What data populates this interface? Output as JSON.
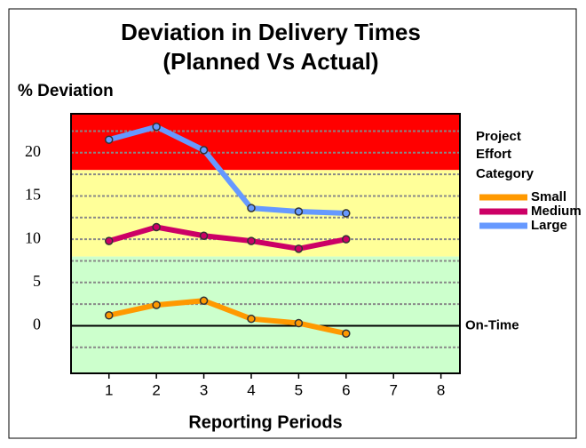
{
  "chart_data": {
    "type": "line",
    "title": [
      "Deviation in Delivery Times",
      "(Planned Vs Actual)"
    ],
    "y_label": "% Deviation",
    "x_label": "Reporting Periods",
    "legend_title": [
      "Project",
      "Effort",
      "Category"
    ],
    "x": [
      1,
      2,
      3,
      4,
      5,
      6
    ],
    "xlim": [
      0.2,
      8.4
    ],
    "xticks": [
      1,
      2,
      3,
      4,
      5,
      6,
      7,
      8
    ],
    "ylim": [
      -5.5,
      24.5
    ],
    "yticks": [
      0,
      5,
      10,
      15,
      20
    ],
    "grid_lines": [
      -2.5,
      2.5,
      7.5,
      12.5,
      17.5,
      22.5
    ],
    "bands": [
      {
        "from": 18,
        "to": 24.5,
        "color": "#ff0000"
      },
      {
        "from": 8,
        "to": 18,
        "color": "#ffff99"
      },
      {
        "from": -5.5,
        "to": 8,
        "color": "#ccffcc"
      }
    ],
    "reference_line": {
      "value": 0,
      "label": "On-Time"
    },
    "series": [
      {
        "name": "Small",
        "color": "#ff9900",
        "values": [
          1.2,
          2.4,
          2.9,
          0.8,
          0.3,
          -0.9
        ]
      },
      {
        "name": "Medium",
        "color": "#cc0066",
        "values": [
          9.8,
          11.4,
          10.4,
          9.8,
          8.9,
          10.0
        ]
      },
      {
        "name": "Large",
        "color": "#6699ff",
        "values": [
          21.5,
          23.0,
          20.3,
          13.6,
          13.2,
          13.0
        ]
      }
    ]
  }
}
